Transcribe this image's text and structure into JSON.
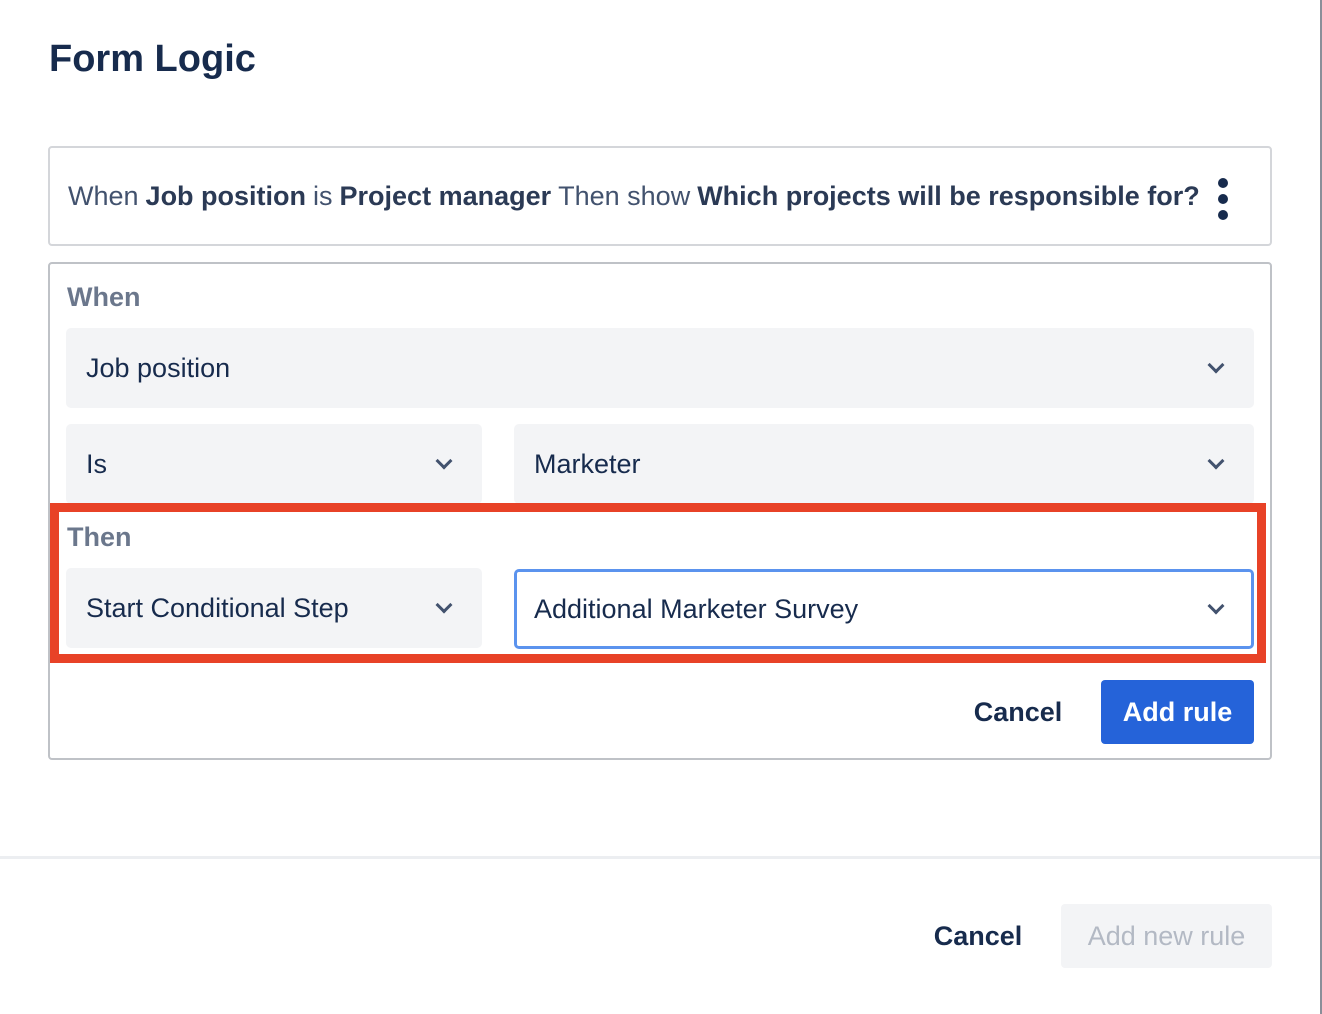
{
  "title": "Form Logic",
  "summary": {
    "when": "When",
    "field": "Job position",
    "is": "is",
    "value": "Project manager",
    "then": "Then show",
    "target": "Which projects will be responsible for?"
  },
  "editor": {
    "when_label": "When",
    "field_select": "Job position",
    "operator_select": "Is",
    "value_select": "Marketer",
    "then_label": "Then",
    "action_select": "Start Conditional Step",
    "step_select": "Additional Marketer Survey",
    "cancel": "Cancel",
    "add_rule": "Add rule"
  },
  "footer": {
    "cancel": "Cancel",
    "add_new_rule": "Add new rule"
  },
  "colors": {
    "primary": "#2563d9",
    "highlight": "#e84227",
    "focus": "#5b93ee"
  }
}
